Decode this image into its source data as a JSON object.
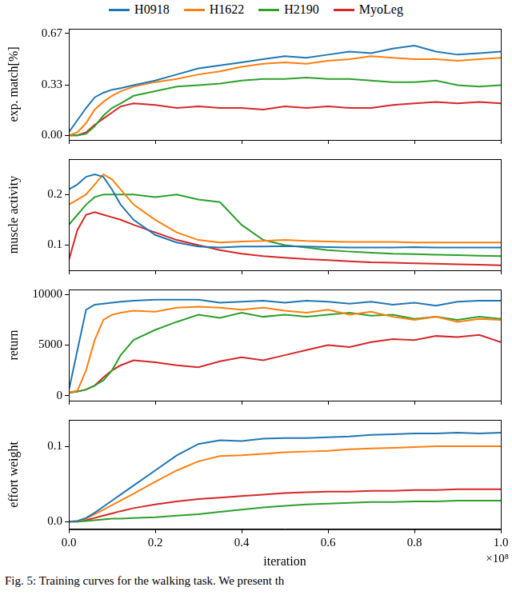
{
  "caption": "Fig. 5: Training curves for the walking task. We present th",
  "chart_data": [
    {
      "type": "line",
      "ylabel": "exp. match[%]",
      "legend": "top",
      "grid": false,
      "tick_labels": "y",
      "x": [
        0,
        0.02,
        0.04,
        0.06,
        0.08,
        0.1,
        0.12,
        0.15,
        0.2,
        0.25,
        0.3,
        0.35,
        0.4,
        0.45,
        0.5,
        0.55,
        0.6,
        0.65,
        0.7,
        0.75,
        0.8,
        0.85,
        0.9,
        0.95,
        1.0
      ],
      "xlim": [
        0,
        1
      ],
      "xticks": [
        {
          "value": 0,
          "label": "0.0"
        },
        {
          "value": 0.2,
          "label": "0.2"
        },
        {
          "value": 0.4,
          "label": "0.4"
        },
        {
          "value": 0.6,
          "label": "0.6"
        },
        {
          "value": 0.8,
          "label": "0.8"
        },
        {
          "value": 1,
          "label": "1.0"
        }
      ],
      "ylim": [
        -0.03,
        0.7
      ],
      "yticks": [
        {
          "value": 0,
          "label": "0.00"
        },
        0.33,
        0.67
      ],
      "series": [
        {
          "name": "H0918",
          "color": "#1f77b4",
          "values": [
            0.02,
            0.1,
            0.18,
            0.25,
            0.28,
            0.3,
            0.31,
            0.33,
            0.36,
            0.4,
            0.44,
            0.46,
            0.48,
            0.5,
            0.52,
            0.51,
            0.53,
            0.55,
            0.54,
            0.57,
            0.59,
            0.55,
            0.53,
            0.54,
            0.55
          ]
        },
        {
          "name": "H1622",
          "color": "#ff7f0e",
          "values": [
            0.0,
            0.02,
            0.08,
            0.17,
            0.22,
            0.26,
            0.29,
            0.32,
            0.35,
            0.37,
            0.4,
            0.42,
            0.45,
            0.47,
            0.48,
            0.47,
            0.49,
            0.5,
            0.52,
            0.51,
            0.5,
            0.5,
            0.49,
            0.5,
            0.51
          ]
        },
        {
          "name": "H2190",
          "color": "#2ca02c",
          "values": [
            0.0,
            0.0,
            0.01,
            0.06,
            0.13,
            0.18,
            0.21,
            0.26,
            0.29,
            0.32,
            0.33,
            0.34,
            0.36,
            0.37,
            0.37,
            0.38,
            0.37,
            0.37,
            0.36,
            0.35,
            0.35,
            0.36,
            0.33,
            0.32,
            0.33
          ]
        },
        {
          "name": "MyoLeg",
          "color": "#d62728",
          "values": [
            0.0,
            0.0,
            0.02,
            0.07,
            0.11,
            0.15,
            0.19,
            0.21,
            0.2,
            0.18,
            0.19,
            0.18,
            0.18,
            0.17,
            0.19,
            0.18,
            0.19,
            0.18,
            0.18,
            0.2,
            0.21,
            0.22,
            0.21,
            0.22,
            0.21
          ]
        }
      ]
    },
    {
      "type": "line",
      "ylabel": "muscle activity",
      "grid": false,
      "tick_labels": "y",
      "x": [
        0,
        0.02,
        0.04,
        0.06,
        0.08,
        0.1,
        0.12,
        0.15,
        0.2,
        0.25,
        0.3,
        0.35,
        0.4,
        0.45,
        0.5,
        0.55,
        0.6,
        0.65,
        0.7,
        0.75,
        0.8,
        0.85,
        0.9,
        0.95,
        1.0
      ],
      "xlim": [
        0,
        1
      ],
      "xticks": [
        {
          "value": 0,
          "label": "0.0"
        },
        {
          "value": 0.2,
          "label": "0.2"
        },
        {
          "value": 0.4,
          "label": "0.4"
        },
        {
          "value": 0.6,
          "label": "0.6"
        },
        {
          "value": 0.8,
          "label": "0.8"
        },
        {
          "value": 1,
          "label": "1.0"
        }
      ],
      "ylim": [
        0.05,
        0.27
      ],
      "yticks": [
        0.1,
        0.2
      ],
      "series": [
        {
          "name": "H0918",
          "color": "#1f77b4",
          "values": [
            0.21,
            0.22,
            0.235,
            0.24,
            0.235,
            0.21,
            0.18,
            0.15,
            0.12,
            0.105,
            0.097,
            0.095,
            0.097,
            0.097,
            0.098,
            0.097,
            0.096,
            0.095,
            0.095,
            0.095,
            0.096,
            0.095,
            0.095,
            0.095,
            0.095
          ]
        },
        {
          "name": "H1622",
          "color": "#ff7f0e",
          "values": [
            0.18,
            0.19,
            0.2,
            0.22,
            0.24,
            0.23,
            0.21,
            0.18,
            0.15,
            0.125,
            0.11,
            0.105,
            0.107,
            0.108,
            0.11,
            0.108,
            0.107,
            0.106,
            0.106,
            0.106,
            0.105,
            0.105,
            0.105,
            0.105,
            0.105
          ]
        },
        {
          "name": "H2190",
          "color": "#2ca02c",
          "values": [
            0.14,
            0.16,
            0.18,
            0.195,
            0.2,
            0.2,
            0.2,
            0.2,
            0.195,
            0.2,
            0.19,
            0.185,
            0.14,
            0.11,
            0.1,
            0.095,
            0.09,
            0.087,
            0.085,
            0.083,
            0.082,
            0.081,
            0.08,
            0.079,
            0.078
          ]
        },
        {
          "name": "MyoLeg",
          "color": "#d62728",
          "values": [
            0.07,
            0.13,
            0.16,
            0.165,
            0.16,
            0.155,
            0.15,
            0.14,
            0.125,
            0.11,
            0.1,
            0.09,
            0.083,
            0.078,
            0.075,
            0.072,
            0.07,
            0.068,
            0.066,
            0.065,
            0.064,
            0.063,
            0.062,
            0.061,
            0.06
          ]
        }
      ]
    },
    {
      "type": "line",
      "ylabel": "return",
      "grid": false,
      "tick_labels": "y",
      "x": [
        0,
        0.02,
        0.04,
        0.06,
        0.08,
        0.1,
        0.12,
        0.15,
        0.2,
        0.25,
        0.3,
        0.35,
        0.4,
        0.45,
        0.5,
        0.55,
        0.6,
        0.65,
        0.7,
        0.75,
        0.8,
        0.85,
        0.9,
        0.95,
        1.0
      ],
      "xlim": [
        0,
        1
      ],
      "xticks": [
        {
          "value": 0,
          "label": "0.0"
        },
        {
          "value": 0.2,
          "label": "0.2"
        },
        {
          "value": 0.4,
          "label": "0.4"
        },
        {
          "value": 0.6,
          "label": "0.6"
        },
        {
          "value": 0.8,
          "label": "0.8"
        },
        {
          "value": 1,
          "label": "1.0"
        }
      ],
      "ylim": [
        -500,
        10500
      ],
      "yticks": [
        0,
        5000,
        10000
      ],
      "series": [
        {
          "name": "H0918",
          "color": "#1f77b4",
          "values": [
            500,
            4500,
            8500,
            9000,
            9100,
            9200,
            9300,
            9400,
            9500,
            9500,
            9500,
            9200,
            9300,
            9400,
            9200,
            9400,
            9300,
            9100,
            9300,
            9000,
            9200,
            8900,
            9300,
            9400,
            9400
          ]
        },
        {
          "name": "H1622",
          "color": "#ff7f0e",
          "values": [
            300,
            500,
            2500,
            5500,
            7500,
            8000,
            8200,
            8400,
            8300,
            8700,
            8800,
            8700,
            8500,
            8700,
            8400,
            8200,
            8500,
            8000,
            8300,
            7800,
            7500,
            7800,
            7300,
            7600,
            7500
          ]
        },
        {
          "name": "H2190",
          "color": "#2ca02c",
          "values": [
            300,
            400,
            600,
            1000,
            1500,
            2500,
            4000,
            5500,
            6500,
            7300,
            8000,
            7700,
            8200,
            7800,
            8000,
            7800,
            8000,
            8200,
            7900,
            8000,
            7600,
            7800,
            7500,
            7800,
            7600
          ]
        },
        {
          "name": "MyoLeg",
          "color": "#d62728",
          "values": [
            300,
            400,
            600,
            1000,
            1800,
            2500,
            3000,
            3500,
            3300,
            3000,
            2800,
            3400,
            3800,
            3500,
            4000,
            4500,
            5000,
            4800,
            5300,
            5600,
            5500,
            5900,
            5800,
            6000,
            5300
          ]
        }
      ]
    },
    {
      "type": "line",
      "ylabel": "effort weight",
      "xlabel": "iteration",
      "grid": false,
      "annotations": [
        {
          "text": "×10⁸"
        }
      ],
      "x": [
        0,
        0.02,
        0.04,
        0.06,
        0.08,
        0.1,
        0.12,
        0.15,
        0.2,
        0.25,
        0.3,
        0.35,
        0.4,
        0.45,
        0.5,
        0.55,
        0.6,
        0.65,
        0.7,
        0.75,
        0.8,
        0.85,
        0.9,
        0.95,
        1.0
      ],
      "xlim": [
        0,
        1
      ],
      "xticks": [
        {
          "value": 0,
          "label": "0.0"
        },
        {
          "value": 0.2,
          "label": "0.2"
        },
        {
          "value": 0.4,
          "label": "0.4"
        },
        {
          "value": 0.6,
          "label": "0.6"
        },
        {
          "value": 0.8,
          "label": "0.8"
        },
        {
          "value": 1,
          "label": "1.0"
        }
      ],
      "ylim": [
        -0.01,
        0.135
      ],
      "yticks": [
        {
          "value": 0,
          "label": "0.0"
        },
        0.1
      ],
      "series": [
        {
          "name": "H0918",
          "color": "#1f77b4",
          "values": [
            0,
            0.001,
            0.005,
            0.012,
            0.02,
            0.028,
            0.036,
            0.048,
            0.068,
            0.088,
            0.103,
            0.108,
            0.107,
            0.11,
            0.111,
            0.111,
            0.112,
            0.113,
            0.115,
            0.116,
            0.117,
            0.117,
            0.118,
            0.117,
            0.118
          ]
        },
        {
          "name": "H1622",
          "color": "#ff7f0e",
          "values": [
            0,
            0.001,
            0.004,
            0.01,
            0.016,
            0.022,
            0.028,
            0.037,
            0.053,
            0.068,
            0.08,
            0.087,
            0.088,
            0.09,
            0.092,
            0.093,
            0.094,
            0.096,
            0.097,
            0.098,
            0.099,
            0.1,
            0.1,
            0.1,
            0.1
          ]
        },
        {
          "name": "H2190",
          "color": "#2ca02c",
          "values": [
            0,
            0,
            0.001,
            0.002,
            0.003,
            0.004,
            0.004,
            0.005,
            0.006,
            0.008,
            0.01,
            0.013,
            0.016,
            0.019,
            0.021,
            0.023,
            0.024,
            0.025,
            0.026,
            0.026,
            0.027,
            0.027,
            0.028,
            0.028,
            0.028
          ]
        },
        {
          "name": "MyoLeg",
          "color": "#d62728",
          "values": [
            0,
            0,
            0.002,
            0.005,
            0.008,
            0.011,
            0.014,
            0.018,
            0.023,
            0.027,
            0.03,
            0.032,
            0.034,
            0.036,
            0.038,
            0.039,
            0.04,
            0.04,
            0.041,
            0.041,
            0.042,
            0.042,
            0.043,
            0.043,
            0.043
          ]
        }
      ]
    }
  ]
}
